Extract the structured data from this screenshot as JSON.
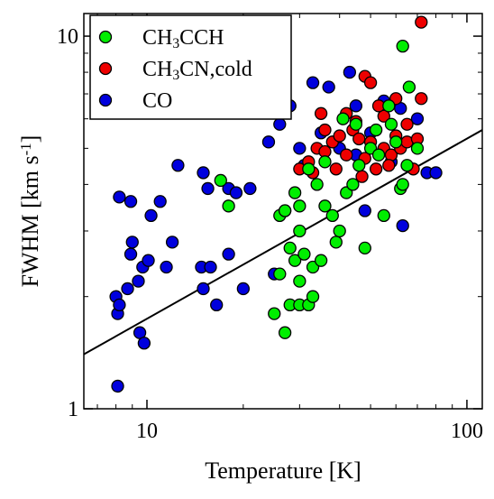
{
  "chart_data": {
    "type": "scatter",
    "xlabel": "Temperature [K]",
    "ylabel": "FWHM [km s-1]",
    "log_x": true,
    "log_y": true,
    "xlim": [
      6.35,
      111.7
    ],
    "ylim": [
      1,
      11.5
    ],
    "xticks": [
      10,
      100
    ],
    "yticks": [
      1,
      10
    ],
    "xminorticks": [
      7,
      8,
      9,
      20,
      30,
      40,
      50,
      60,
      70,
      80,
      90
    ],
    "yminorticks": [
      2,
      3,
      4,
      5,
      6,
      7,
      8,
      9
    ],
    "legend": "upper left",
    "fit": {
      "x": [
        6.35,
        111.7
      ],
      "y": [
        1.4,
        5.6
      ],
      "color": "#000000"
    },
    "series": [
      {
        "name": "CH3CCH",
        "color": "#00ee00",
        "x": [
          63,
          66,
          25,
          27,
          28,
          30,
          32,
          30,
          29,
          31,
          33,
          35,
          33,
          26,
          28,
          30,
          26,
          27,
          29,
          30,
          32,
          34,
          36,
          38,
          39,
          40,
          42,
          44,
          46,
          48,
          50,
          52,
          55,
          57,
          60,
          62,
          65,
          70,
          17,
          18,
          41,
          45,
          36,
          53,
          58,
          63
        ],
        "y": [
          9.4,
          7.3,
          1.8,
          1.6,
          1.9,
          1.9,
          1.9,
          2.2,
          2.5,
          2.6,
          2.4,
          2.5,
          2.0,
          2.3,
          2.7,
          3.0,
          3.3,
          3.4,
          3.8,
          3.5,
          4.4,
          4.0,
          3.5,
          3.3,
          2.8,
          3.0,
          3.8,
          4.0,
          4.5,
          2.7,
          5.0,
          5.6,
          3.3,
          6.5,
          5.2,
          3.9,
          4.5,
          5.0,
          4.1,
          3.5,
          6.0,
          5.8,
          4.6,
          4.8,
          5.8,
          4.0
        ]
      },
      {
        "name": "CH3CN,cold",
        "color": "#ee0000",
        "x": [
          72,
          48,
          50,
          60,
          72,
          35,
          45,
          55,
          65,
          30,
          32,
          34,
          36,
          38,
          40,
          42,
          44,
          46,
          48,
          50,
          52,
          55,
          58,
          60,
          62,
          65,
          68,
          70,
          36,
          42,
          53,
          39,
          47,
          57,
          33
        ],
        "y": [
          10.9,
          7.8,
          7.5,
          6.8,
          6.8,
          6.2,
          5.9,
          6.1,
          5.8,
          4.4,
          4.6,
          5.0,
          4.9,
          5.2,
          5.4,
          4.8,
          5.6,
          5.3,
          4.7,
          5.2,
          4.4,
          5.0,
          4.8,
          5.4,
          5.0,
          5.2,
          4.4,
          5.3,
          5.6,
          6.2,
          6.5,
          4.4,
          4.2,
          4.5,
          4.3
        ]
      },
      {
        "name": "CO",
        "color": "#0000dd",
        "x": [
          8.2,
          8.9,
          9.0,
          8.9,
          9.4,
          9.7,
          10.1,
          10.3,
          11.0,
          11.5,
          12.5,
          12.0,
          8.0,
          8.1,
          8.2,
          8.7,
          9.5,
          9.8,
          8.1,
          15.0,
          15.5,
          14.8,
          15.8,
          16.5,
          18,
          18,
          19,
          20,
          21,
          15.0,
          24,
          26,
          25,
          27,
          28,
          30,
          33,
          37,
          43,
          45,
          50,
          55,
          62,
          70,
          75,
          80,
          63,
          48,
          40,
          35,
          31,
          45,
          58
        ],
        "y": [
          3.7,
          3.6,
          2.8,
          2.6,
          2.2,
          2.4,
          2.5,
          3.3,
          3.6,
          2.4,
          4.5,
          2.8,
          2.0,
          1.8,
          1.9,
          2.1,
          1.6,
          1.5,
          1.15,
          4.3,
          3.9,
          2.4,
          2.4,
          1.9,
          3.9,
          2.6,
          3.8,
          2.1,
          3.9,
          2.1,
          5.2,
          5.8,
          2.3,
          3.4,
          6.5,
          5.0,
          7.5,
          7.3,
          8.0,
          6.5,
          5.5,
          6.7,
          6.4,
          6.0,
          4.3,
          4.3,
          3.1,
          3.4,
          5.0,
          5.5,
          4.5,
          4.8,
          4.6
        ]
      }
    ]
  }
}
